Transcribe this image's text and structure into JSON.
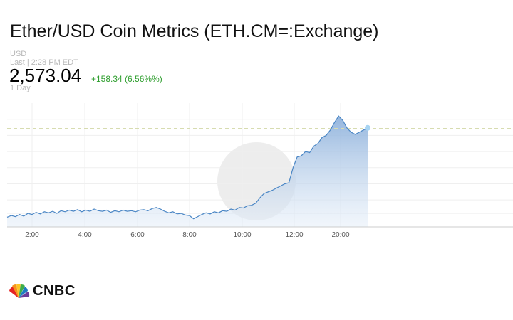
{
  "header": {
    "title": "Ether/USD Coin Metrics (ETH.CM=:Exchange)",
    "currency": "USD",
    "last_time": "Last | 2:28 PM EDT",
    "price": "2,573.04",
    "change": "+158.34 (6.56%%)",
    "period": "1 Day"
  },
  "colors": {
    "line": "#4a86c5",
    "fill_top": "#8fb2dc",
    "change": "#2e9e2e",
    "reference_line": "#d7dcb0"
  },
  "chart_data": {
    "type": "area",
    "x_ticks": [
      "2:00",
      "4:00",
      "6:00",
      "8:00",
      "10:00",
      "12:00",
      "20:00"
    ],
    "reference_value": 2573,
    "ylim": [
      2390,
      2620
    ],
    "grid": true,
    "points": [
      [
        0,
        2408
      ],
      [
        2,
        2411
      ],
      [
        4,
        2409
      ],
      [
        6,
        2413
      ],
      [
        8,
        2410
      ],
      [
        10,
        2415
      ],
      [
        12,
        2413
      ],
      [
        14,
        2417
      ],
      [
        16,
        2414
      ],
      [
        18,
        2418
      ],
      [
        20,
        2416
      ],
      [
        22,
        2419
      ],
      [
        24,
        2415
      ],
      [
        26,
        2420
      ],
      [
        28,
        2418
      ],
      [
        30,
        2421
      ],
      [
        32,
        2419
      ],
      [
        34,
        2422
      ],
      [
        36,
        2418
      ],
      [
        38,
        2421
      ],
      [
        40,
        2419
      ],
      [
        42,
        2423
      ],
      [
        44,
        2420
      ],
      [
        46,
        2419
      ],
      [
        48,
        2421
      ],
      [
        50,
        2417
      ],
      [
        52,
        2420
      ],
      [
        54,
        2418
      ],
      [
        56,
        2421
      ],
      [
        58,
        2419
      ],
      [
        60,
        2420
      ],
      [
        62,
        2418
      ],
      [
        64,
        2421
      ],
      [
        66,
        2422
      ],
      [
        68,
        2420
      ],
      [
        70,
        2424
      ],
      [
        72,
        2426
      ],
      [
        74,
        2423
      ],
      [
        76,
        2419
      ],
      [
        78,
        2416
      ],
      [
        80,
        2418
      ],
      [
        82,
        2414
      ],
      [
        84,
        2415
      ],
      [
        86,
        2412
      ],
      [
        88,
        2411
      ],
      [
        90,
        2405
      ],
      [
        92,
        2409
      ],
      [
        94,
        2413
      ],
      [
        96,
        2416
      ],
      [
        98,
        2414
      ],
      [
        100,
        2418
      ],
      [
        102,
        2416
      ],
      [
        104,
        2420
      ],
      [
        106,
        2419
      ],
      [
        108,
        2423
      ],
      [
        110,
        2421
      ],
      [
        112,
        2426
      ],
      [
        114,
        2425
      ],
      [
        116,
        2429
      ],
      [
        118,
        2430
      ],
      [
        120,
        2434
      ],
      [
        122,
        2444
      ],
      [
        124,
        2452
      ],
      [
        126,
        2455
      ],
      [
        128,
        2458
      ],
      [
        130,
        2462
      ],
      [
        132,
        2466
      ],
      [
        134,
        2470
      ],
      [
        136,
        2472
      ],
      [
        138,
        2500
      ],
      [
        140,
        2520
      ],
      [
        142,
        2522
      ],
      [
        144,
        2530
      ],
      [
        146,
        2528
      ],
      [
        148,
        2540
      ],
      [
        150,
        2545
      ],
      [
        152,
        2556
      ],
      [
        154,
        2560
      ],
      [
        156,
        2570
      ],
      [
        158,
        2584
      ],
      [
        160,
        2596
      ],
      [
        162,
        2588
      ],
      [
        164,
        2574
      ],
      [
        166,
        2566
      ],
      [
        168,
        2562
      ],
      [
        170,
        2566
      ],
      [
        172,
        2570
      ],
      [
        174,
        2574
      ]
    ]
  }
}
